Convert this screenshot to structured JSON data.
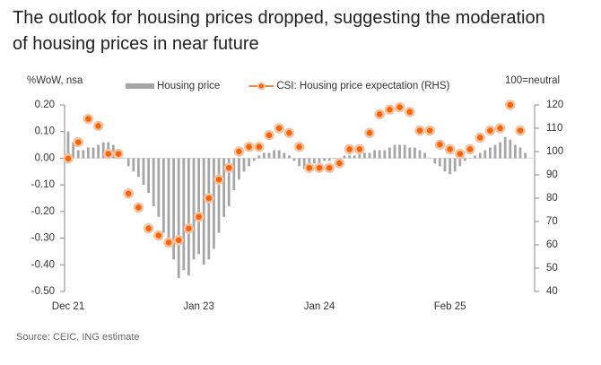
{
  "chart_data": {
    "type": "combo",
    "title": "The outlook for housing prices dropped, suggesting the moderation of housing prices in near future",
    "y_label": "%WoW, nsa",
    "y2_label": "100=neutral",
    "source": "Source: CEIC, ING estimate",
    "categories": [
      "Dec 21",
      null,
      null,
      null,
      null,
      null,
      null,
      null,
      null,
      null,
      null,
      null,
      null,
      null,
      null,
      null,
      null,
      null,
      null,
      null,
      null,
      null,
      null,
      null,
      null,
      null,
      "Jan 23",
      null,
      null,
      null,
      null,
      null,
      null,
      null,
      null,
      null,
      null,
      null,
      null,
      null,
      null,
      null,
      null,
      null,
      null,
      null,
      null,
      null,
      null,
      null,
      "Jan 24",
      null,
      null,
      null,
      null,
      null,
      null,
      null,
      null,
      null,
      null,
      null,
      null,
      null,
      null,
      null,
      null,
      null,
      null,
      null,
      null,
      null,
      null,
      null,
      null,
      null,
      "Feb 25",
      null,
      null,
      null,
      null,
      null,
      null,
      null,
      null,
      null,
      null,
      null,
      null,
      null,
      null,
      null
    ],
    "ylim": [
      -0.5,
      0.2
    ],
    "yticks": [
      {
        "value": 0.2,
        "label": "0.20"
      },
      {
        "value": 0.1,
        "label": "0.10"
      },
      {
        "value": 0,
        "label": "0.00"
      },
      {
        "value": -0.1,
        "label": "-0.10"
      },
      {
        "value": -0.2,
        "label": "-0.20"
      },
      {
        "value": -0.3,
        "label": "-0.30"
      },
      {
        "value": -0.4,
        "label": "-0.40"
      },
      {
        "value": -0.5,
        "label": "-0.50"
      }
    ],
    "y2lim": [
      40,
      120
    ],
    "y2ticks": [
      120,
      110,
      100,
      90,
      80,
      70,
      60,
      50,
      40
    ],
    "series": [
      {
        "name": "Housing price",
        "type": "bar",
        "color": "#a6a6a6",
        "values": [
          0.1,
          0.06,
          0.03,
          0.03,
          0.04,
          0.04,
          0.05,
          0.06,
          0.06,
          0.05,
          0.02,
          0.0,
          -0.03,
          -0.05,
          -0.07,
          -0.1,
          -0.13,
          -0.18,
          -0.22,
          -0.28,
          -0.33,
          -0.38,
          -0.45,
          -0.42,
          -0.44,
          -0.38,
          -0.36,
          -0.4,
          -0.38,
          -0.34,
          -0.28,
          -0.22,
          -0.18,
          -0.12,
          -0.08,
          -0.05,
          -0.03,
          -0.01,
          0.01,
          0.02,
          0.02,
          0.03,
          0.03,
          0.02,
          0.01,
          -0.01,
          -0.03,
          -0.04,
          -0.03,
          -0.02,
          -0.02,
          -0.01,
          -0.01,
          0.0,
          0.0,
          0.01,
          0.01,
          0.01,
          0.02,
          0.02,
          0.02,
          0.03,
          0.03,
          0.03,
          0.04,
          0.05,
          0.05,
          0.05,
          0.04,
          0.04,
          0.03,
          0.02,
          0.0,
          -0.02,
          -0.03,
          -0.05,
          -0.06,
          -0.05,
          -0.03,
          -0.01,
          0.0,
          0.01,
          0.02,
          0.03,
          0.04,
          0.05,
          0.06,
          0.08,
          0.07,
          0.05,
          0.04,
          0.02
        ]
      },
      {
        "name": "CSI: Housing price expectation (RHS)",
        "type": "dot",
        "axis": "y2",
        "color": "#ff6200",
        "values": [
          97,
          null,
          104,
          null,
          114,
          null,
          111,
          null,
          99,
          null,
          99,
          null,
          82,
          null,
          76,
          null,
          67,
          null,
          64,
          null,
          61,
          null,
          62,
          null,
          67,
          null,
          72,
          null,
          80,
          null,
          88,
          null,
          93,
          null,
          100,
          null,
          102,
          null,
          102,
          null,
          107,
          null,
          110,
          null,
          108,
          null,
          102,
          null,
          93,
          null,
          93,
          null,
          93,
          null,
          95,
          null,
          101,
          null,
          101,
          null,
          108,
          null,
          116,
          null,
          118,
          null,
          119,
          null,
          117,
          null,
          109,
          null,
          109,
          null,
          103,
          null,
          101,
          null,
          99,
          null,
          101,
          null,
          106,
          null,
          109,
          null,
          110,
          null,
          120,
          null,
          109,
          null
        ]
      }
    ]
  }
}
